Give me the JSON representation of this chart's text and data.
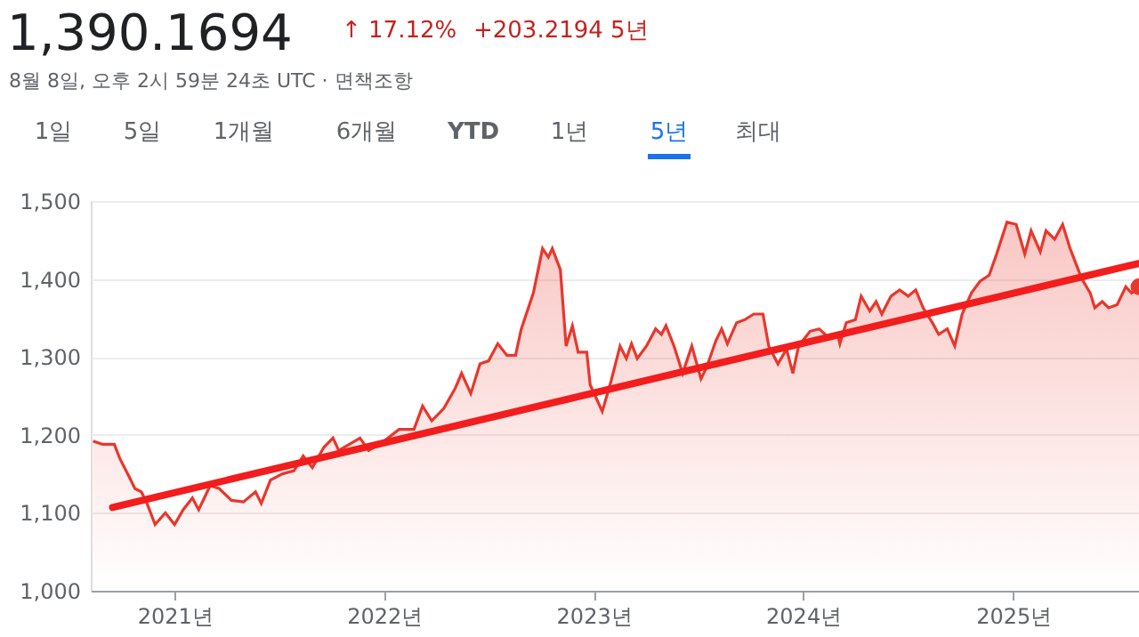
{
  "chart_data": {
    "type": "area",
    "title": "1,390.1694",
    "annotations": [
      "↑ 17.12%",
      "+203.2194 5년",
      "8월 8일, 오후 2시 59분 24초 UTC · 면책조항",
      "1일",
      "5일",
      "1개월",
      "6개월",
      "YTD",
      "1년",
      "5년",
      "최대"
    ],
    "series": [
      {
        "color": "#e8372c",
        "x": [
          "2020-08-12",
          "2020-08-28",
          "2020-09-18",
          "2020-09-28",
          "2020-10-14",
          "2020-10-24",
          "2020-11-04",
          "2020-11-14",
          "2020-11-28",
          "2020-12-16",
          "2021-01-01",
          "2021-01-16",
          "2021-02-01",
          "2021-02-12",
          "2021-03-04",
          "2021-03-20",
          "2021-04-10",
          "2021-05-01",
          "2021-05-22",
          "2021-06-01",
          "2021-06-17",
          "2021-07-08",
          "2021-07-28",
          "2021-08-13",
          "2021-08-29",
          "2021-09-18",
          "2021-10-04",
          "2021-10-14",
          "2021-11-20",
          "2021-12-05",
          "2022-01-01",
          "2022-01-27",
          "2022-02-22",
          "2022-03-09",
          "2022-03-25",
          "2022-04-15",
          "2022-05-05",
          "2022-05-16",
          "2022-06-01",
          "2022-06-17",
          "2022-07-02",
          "2022-07-18",
          "2022-08-03",
          "2022-08-18",
          "2022-08-28",
          "2022-09-18",
          "2022-10-04",
          "2022-10-14",
          "2022-10-21",
          "2022-11-04",
          "2022-11-14",
          "2022-11-25",
          "2022-12-05",
          "2022-12-20",
          "2022-12-26",
          "2023-01-16",
          "2023-01-31",
          "2023-02-16",
          "2023-02-27",
          "2023-03-08",
          "2023-03-18",
          "2023-04-03",
          "2023-04-19",
          "2023-04-29",
          "2023-05-07",
          "2023-05-21",
          "2023-06-05",
          "2023-06-21",
          "2023-07-07",
          "2023-07-17",
          "2023-08-02",
          "2023-08-12",
          "2023-08-22",
          "2023-09-07",
          "2023-09-22",
          "2023-10-07",
          "2023-10-23",
          "2023-11-02",
          "2023-11-18",
          "2023-12-03",
          "2023-12-14",
          "2023-12-24",
          "2024-01-13",
          "2024-01-29",
          "2024-02-14",
          "2024-03-01",
          "2024-03-05",
          "2024-03-16",
          "2024-04-01",
          "2024-04-11",
          "2024-04-26",
          "2024-05-07",
          "2024-05-17",
          "2024-06-02",
          "2024-06-17",
          "2024-07-02",
          "2024-07-15",
          "2024-07-28",
          "2024-08-13",
          "2024-08-24",
          "2024-09-08",
          "2024-09-21",
          "2024-10-04",
          "2024-10-20",
          "2024-11-04",
          "2024-11-20",
          "2024-12-03",
          "2024-12-21",
          "2025-01-06",
          "2025-01-21",
          "2025-02-01",
          "2025-02-17",
          "2025-02-27",
          "2025-03-14",
          "2025-03-28",
          "2025-04-10",
          "2025-04-20",
          "2025-04-30",
          "2025-05-15",
          "2025-05-23",
          "2025-06-05",
          "2025-06-16",
          "2025-07-01",
          "2025-07-16",
          "2025-07-26",
          "2025-08-08"
        ],
        "values": [
          1192,
          1188,
          1188,
          1169,
          1146,
          1131,
          1127,
          1112,
          1085,
          1100,
          1085,
          1104,
          1119,
          1104,
          1135,
          1131,
          1116,
          1114,
          1127,
          1112,
          1142,
          1150,
          1154,
          1173,
          1158,
          1184,
          1196,
          1180,
          1196,
          1180,
          1192,
          1207,
          1207,
          1237,
          1218,
          1234,
          1260,
          1279,
          1253,
          1291,
          1295,
          1317,
          1302,
          1302,
          1336,
          1382,
          1439,
          1428,
          1439,
          1412,
          1314,
          1340,
          1306,
          1306,
          1264,
          1230,
          1268,
          1314,
          1298,
          1317,
          1298,
          1314,
          1336,
          1329,
          1340,
          1314,
          1279,
          1314,
          1272,
          1287,
          1321,
          1336,
          1317,
          1344,
          1348,
          1355,
          1355,
          1314,
          1291,
          1310,
          1279,
          1314,
          1333,
          1336,
          1325,
          1329,
          1317,
          1344,
          1348,
          1378,
          1359,
          1371,
          1355,
          1378,
          1386,
          1378,
          1386,
          1363,
          1344,
          1329,
          1336,
          1314,
          1355,
          1382,
          1397,
          1405,
          1432,
          1473,
          1470,
          1432,
          1462,
          1435,
          1462,
          1451,
          1470,
          1439,
          1420,
          1401,
          1382,
          1363,
          1371,
          1363,
          1367,
          1390,
          1382,
          1390
        ]
      },
      {
        "type": "line",
        "color": "#f21d1d",
        "x": [
          "2020-09-15",
          "2025-08-08"
        ],
        "values": [
          1107,
          1420
        ]
      },
      {
        "type": "scatter",
        "color": "#e8372c",
        "x": [
          "2025-08-08"
        ],
        "values": [
          1390
        ]
      }
    ],
    "xlim": [
      "2020-08-08",
      "2025-08-08"
    ],
    "xticks": [
      {
        "value": "2021-01-01",
        "label": "2021년"
      },
      {
        "value": "2022-01-01",
        "label": "2022년"
      },
      {
        "value": "2023-01-01",
        "label": "2023년"
      },
      {
        "value": "2024-01-01",
        "label": "2024년"
      },
      {
        "value": "2025-01-01",
        "label": "2025년"
      }
    ],
    "ylim": [
      1000,
      1500
    ],
    "yticks": [
      {
        "value": 1000,
        "label": "1,000"
      },
      {
        "value": 1100,
        "label": "1,100"
      },
      {
        "value": 1200,
        "label": "1,200"
      },
      {
        "value": 1300,
        "label": "1,300"
      },
      {
        "value": 1400,
        "label": "1,400"
      },
      {
        "value": 1500,
        "label": "1,500"
      }
    ],
    "grid": "y"
  }
}
